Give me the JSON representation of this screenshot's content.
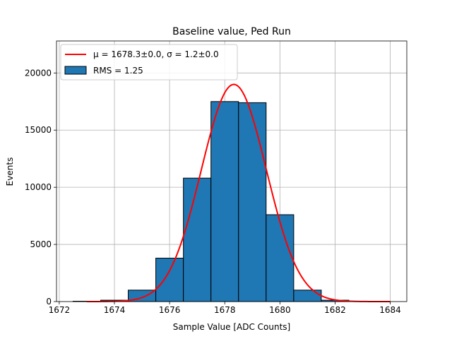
{
  "chart_data": {
    "type": "bar",
    "title": "Baseline value, Ped Run",
    "xlabel": "Sample Value [ADC Counts]",
    "ylabel": "Events",
    "xlim": [
      1671.9,
      1684.6
    ],
    "ylim": [
      0,
      22800
    ],
    "xticks": [
      1672,
      1674,
      1676,
      1678,
      1680,
      1682,
      1684
    ],
    "xtick_labels": [
      "1672",
      "1674",
      "1676",
      "1678",
      "1680",
      "1682",
      "1684"
    ],
    "yticks": [
      0,
      5000,
      10000,
      15000,
      20000
    ],
    "ytick_labels": [
      "0",
      "5000",
      "10000",
      "15000",
      "20000"
    ],
    "grid": true,
    "legend_position": "top-left",
    "histogram": {
      "name": "RMS = 1.25",
      "color": "#1f77b4",
      "edgecolor": "#000000",
      "bins": [
        {
          "x0": 1672.5,
          "x1": 1673.5,
          "value": 30
        },
        {
          "x0": 1673.5,
          "x1": 1674.5,
          "value": 120
        },
        {
          "x0": 1674.5,
          "x1": 1675.5,
          "value": 1000
        },
        {
          "x0": 1675.5,
          "x1": 1676.5,
          "value": 3800
        },
        {
          "x0": 1676.5,
          "x1": 1677.5,
          "value": 10800
        },
        {
          "x0": 1677.5,
          "x1": 1678.5,
          "value": 17500
        },
        {
          "x0": 1678.5,
          "x1": 1679.5,
          "value": 17400
        },
        {
          "x0": 1679.5,
          "x1": 1680.5,
          "value": 7600
        },
        {
          "x0": 1680.5,
          "x1": 1681.5,
          "value": 1000
        },
        {
          "x0": 1681.5,
          "x1": 1682.5,
          "value": 120
        }
      ]
    },
    "fit": {
      "name": "μ = 1678.3±0.0, σ = 1.2±0.0",
      "color": "#ff0000",
      "mu": 1678.33,
      "sigma": 1.18,
      "amplitude": 19000,
      "x_range": [
        1673.0,
        1684.0
      ]
    }
  }
}
